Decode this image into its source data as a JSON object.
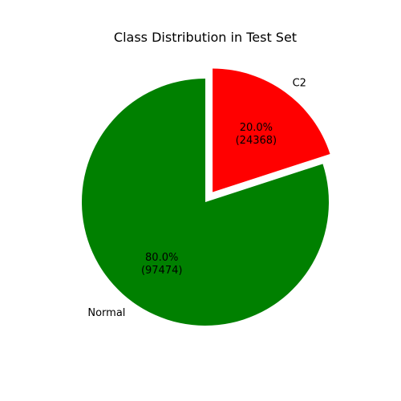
{
  "chart_data": {
    "type": "pie",
    "title": "Class Distribution in Test Set",
    "slices": [
      {
        "label": "Normal",
        "value": 97474,
        "percent_label": "80.0%",
        "count_label": "(97474)",
        "color": "#008000",
        "exploded": false
      },
      {
        "label": "C2",
        "value": 24368,
        "percent_label": "20.0%",
        "count_label": "(24368)",
        "color": "#ff0000",
        "exploded": true
      }
    ],
    "start_angle_deg": 90,
    "direction": "counterclockwise",
    "legend": "none"
  }
}
